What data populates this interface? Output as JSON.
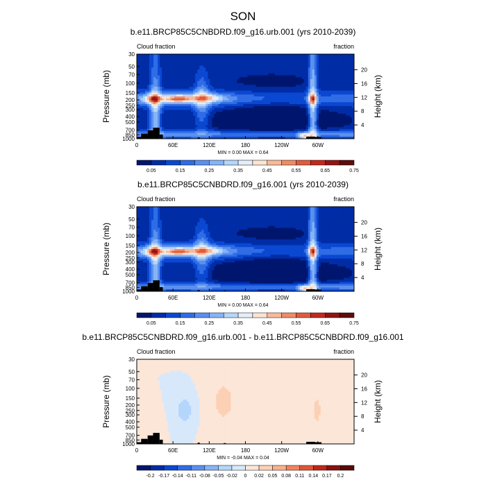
{
  "figure": {
    "title": "SON"
  },
  "palettes": {
    "abs": [
      "#00166e",
      "#002ca6",
      "#0a48d2",
      "#2f6ce6",
      "#5a90ef",
      "#86b4f6",
      "#b4d6fb",
      "#e3eef9",
      "#fde3d1",
      "#f9b99a",
      "#f08b66",
      "#e25a3c",
      "#c3281d",
      "#901414",
      "#600c0c"
    ],
    "diff": [
      "#00166e",
      "#002ca6",
      "#0a48d2",
      "#2f6ce6",
      "#5a90ef",
      "#86b4f6",
      "#b4d6fb",
      "#d8e8fb",
      "#fbe6d8",
      "#fcd0b4",
      "#f9b08c",
      "#f0835f",
      "#e05535",
      "#bd2818",
      "#8b1010",
      "#5a0808"
    ],
    "topography": "#000000"
  },
  "chart_data": [
    {
      "type": "heatmap",
      "title": "b.e11.BRCP85C5CNBDRD.f09_g16.urb.001 (yrs 2010-2039)",
      "left_label": "Cloud fraction",
      "right_label": "fraction",
      "ylabel": "Pressure (mb)",
      "ylabel_right": "Height (km)",
      "x_ticks": [
        "0",
        "60E",
        "120E",
        "180",
        "120W",
        "60W"
      ],
      "y_ticks": [
        "1000",
        "850",
        "700",
        "500",
        "400",
        "300",
        "250",
        "200",
        "150",
        "100",
        "70",
        "50",
        "30"
      ],
      "y_ticks_right": [
        "4",
        "8",
        "12",
        "16",
        "20"
      ],
      "minmax": "MIN =   0.00  MAX =   0.64",
      "colorbar_labels": [
        "0.05",
        "0.15",
        "0.25",
        "0.35",
        "0.45",
        "0.55",
        "0.65",
        "0.75"
      ],
      "palette": "abs",
      "value_range": [
        0,
        0.8
      ],
      "min": 0.0,
      "max": 0.64
    },
    {
      "type": "heatmap",
      "title": "b.e11.BRCP85C5CNBDRD.f09_g16.001 (yrs 2010-2039)",
      "left_label": "Cloud fraction",
      "right_label": "fraction",
      "ylabel": "Pressure (mb)",
      "ylabel_right": "Height (km)",
      "x_ticks": [
        "0",
        "60E",
        "120E",
        "180",
        "120W",
        "60W"
      ],
      "y_ticks": [
        "1000",
        "850",
        "700",
        "500",
        "400",
        "300",
        "250",
        "200",
        "150",
        "100",
        "70",
        "50",
        "30"
      ],
      "y_ticks_right": [
        "4",
        "8",
        "12",
        "16",
        "20"
      ],
      "minmax": "MIN =   0.00  MAX =   0.64",
      "colorbar_labels": [
        "0.05",
        "0.15",
        "0.25",
        "0.35",
        "0.45",
        "0.55",
        "0.65",
        "0.75"
      ],
      "palette": "abs",
      "value_range": [
        0,
        0.8
      ],
      "min": 0.0,
      "max": 0.64
    },
    {
      "type": "heatmap",
      "title": "b.e11.BRCP85C5CNBDRD.f09_g16.urb.001 - b.e11.BRCP85C5CNBDRD.f09_g16.001",
      "left_label": "Cloud fraction",
      "right_label": "fraction",
      "ylabel": "Pressure (mb)",
      "ylabel_right": "Height (km)",
      "x_ticks": [
        "0",
        "60E",
        "120E",
        "180",
        "120W",
        "60W"
      ],
      "y_ticks": [
        "1000",
        "850",
        "700",
        "500",
        "400",
        "300",
        "250",
        "200",
        "150",
        "100",
        "70",
        "50",
        "30"
      ],
      "y_ticks_right": [
        "4",
        "8",
        "12",
        "16",
        "20"
      ],
      "minmax": "MIN =  -0.04  MAX =   0.04",
      "colorbar_labels": [
        "-0.2",
        "-0.17",
        "-0.14",
        "-0.11",
        "-0.08",
        "-0.05",
        "-0.02",
        "0",
        "0.02",
        "0.05",
        "0.08",
        "0.11",
        "0.14",
        "0.17",
        "0.2"
      ],
      "palette": "diff",
      "value_range": [
        -0.22,
        0.22
      ],
      "min": -0.04,
      "max": 0.04
    }
  ]
}
